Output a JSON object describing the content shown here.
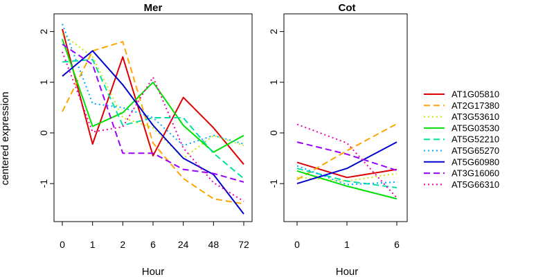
{
  "chart_data": [
    {
      "type": "line",
      "title": "Mer",
      "xlabel": "Hour",
      "ylabel": "centered expression",
      "categories": [
        "0",
        "1",
        "2",
        "6",
        "24",
        "48",
        "72"
      ],
      "ylim": [
        -1.75,
        2.35
      ],
      "yticks": [
        "-1",
        "0",
        "1",
        "2"
      ],
      "grid": false,
      "series": [
        {
          "name": "AT1G05810",
          "values": [
            2.05,
            -0.22,
            1.5,
            -0.45,
            0.7,
            0.1,
            -0.62
          ]
        },
        {
          "name": "AT2G17380",
          "values": [
            0.42,
            1.62,
            1.8,
            -0.2,
            -0.9,
            -1.3,
            -1.4
          ]
        },
        {
          "name": "AT3G53610",
          "values": [
            1.95,
            1.5,
            0.3,
            0.1,
            -0.5,
            -0.05,
            -0.25
          ]
        },
        {
          "name": "AT5G03530",
          "values": [
            1.85,
            0.13,
            0.4,
            1.0,
            0.15,
            -0.38,
            -0.05
          ]
        },
        {
          "name": "AT5G52210",
          "values": [
            1.4,
            1.45,
            0.15,
            0.3,
            0.3,
            -0.4,
            -0.9
          ]
        },
        {
          "name": "AT5G65270",
          "values": [
            2.15,
            0.58,
            0.5,
            0.3,
            -0.25,
            -0.05,
            -0.22
          ]
        },
        {
          "name": "AT5G60980",
          "values": [
            1.12,
            1.62,
            0.95,
            0.15,
            -0.5,
            -0.82,
            -1.6
          ]
        },
        {
          "name": "AT3G16060",
          "values": [
            1.75,
            1.35,
            -0.4,
            -0.4,
            -0.72,
            -0.8,
            -0.97
          ]
        },
        {
          "name": "AT5G66310",
          "values": [
            1.6,
            0.02,
            0.12,
            1.1,
            -0.3,
            -0.98,
            -1.35
          ]
        }
      ]
    },
    {
      "type": "line",
      "title": "Cot",
      "xlabel": "Hour",
      "ylabel": "",
      "categories": [
        "0",
        "1",
        "6"
      ],
      "ylim": [
        -1.75,
        2.35
      ],
      "yticks": [
        "-1",
        "0",
        "1",
        "2"
      ],
      "grid": false,
      "series": [
        {
          "name": "AT1G05810",
          "values": [
            -0.58,
            -0.88,
            -0.72
          ]
        },
        {
          "name": "AT2G17380",
          "values": [
            -0.92,
            -0.35,
            0.18
          ]
        },
        {
          "name": "AT3G53610",
          "values": [
            -0.88,
            -0.95,
            -0.8
          ]
        },
        {
          "name": "AT5G03530",
          "values": [
            -0.75,
            -1.05,
            -1.3
          ]
        },
        {
          "name": "AT5G52210",
          "values": [
            -0.7,
            -0.95,
            -1.08
          ]
        },
        {
          "name": "AT5G65270",
          "values": [
            -0.65,
            -1.02,
            -0.97
          ]
        },
        {
          "name": "AT5G60980",
          "values": [
            -1.0,
            -0.7,
            -0.18
          ]
        },
        {
          "name": "AT3G16060",
          "values": [
            -0.18,
            -0.42,
            -0.74
          ]
        },
        {
          "name": "AT5G66310",
          "values": [
            0.17,
            -0.2,
            -1.28
          ]
        }
      ]
    }
  ],
  "legend": {
    "placement": "right",
    "entries": [
      {
        "name": "AT1G05810",
        "color": "#dd0000",
        "dash": "solid"
      },
      {
        "name": "AT2G17380",
        "color": "#ffa500",
        "dash": "dashed"
      },
      {
        "name": "AT3G53610",
        "color": "#c8e600",
        "dash": "dotted"
      },
      {
        "name": "AT5G03530",
        "color": "#00e000",
        "dash": "solid"
      },
      {
        "name": "AT5G52210",
        "color": "#00e0a0",
        "dash": "dashed"
      },
      {
        "name": "AT5G65270",
        "color": "#00a8ff",
        "dash": "dotted"
      },
      {
        "name": "AT5G60980",
        "color": "#0000cc",
        "dash": "solid"
      },
      {
        "name": "AT3G16060",
        "color": "#9900ff",
        "dash": "dashed"
      },
      {
        "name": "AT5G66310",
        "color": "#ee00aa",
        "dash": "dotted"
      }
    ]
  }
}
